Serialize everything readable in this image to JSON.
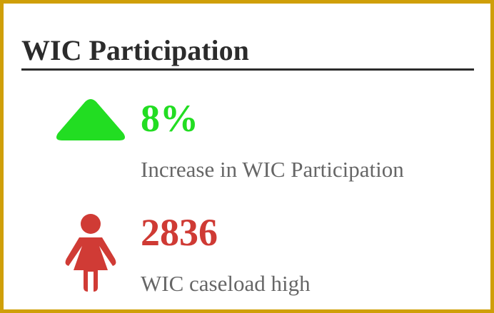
{
  "header": {
    "title": "WIC Participation"
  },
  "stats": [
    {
      "value": "8%",
      "label": "Increase in WIC Participation"
    },
    {
      "value": "2836",
      "label": "WIC caseload high"
    }
  ]
}
